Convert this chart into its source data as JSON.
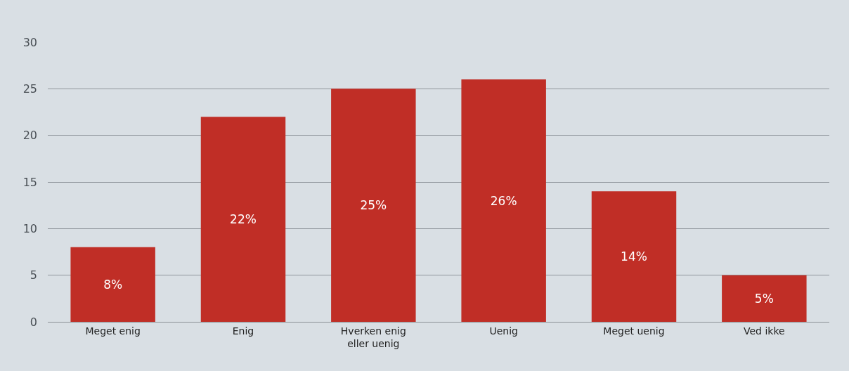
{
  "chart_data": {
    "type": "bar",
    "categories": [
      "Meget enig",
      "Enig",
      "Hverken enig eller uenig",
      "Uenig",
      "Meget uenig",
      "Ved ikke"
    ],
    "values": [
      8,
      22,
      25,
      26,
      14,
      5
    ],
    "value_labels": [
      "8%",
      "22%",
      "25%",
      "26%",
      "14%",
      "5%"
    ],
    "color": "#c02e26",
    "ylim": [
      0,
      30
    ],
    "yticks": [
      0,
      5,
      10,
      15,
      20,
      25,
      30
    ],
    "grid": "y",
    "legend": false
  }
}
